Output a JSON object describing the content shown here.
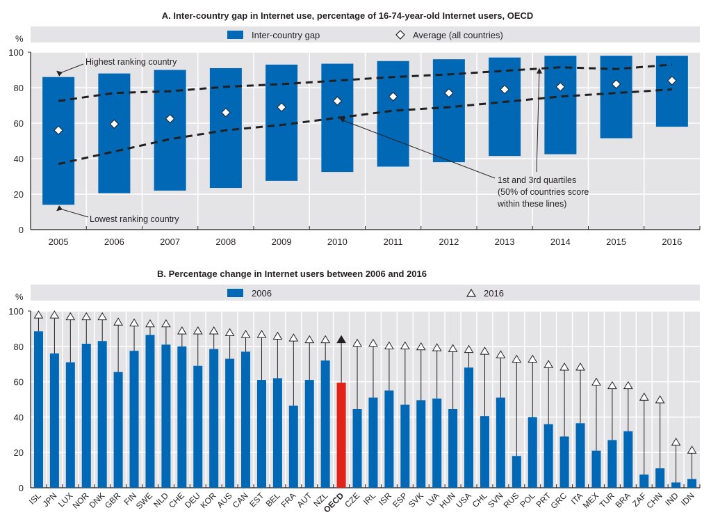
{
  "chart_data": [
    {
      "type": "bar",
      "subtype": "floating-range with markers",
      "title": "A. Inter-country gap in Internet use, percentage of 16-74-year-old Internet users, OECD",
      "ylabel": "%",
      "xlabel": "",
      "ylim": [
        0,
        100
      ],
      "yticks": [
        0,
        20,
        40,
        60,
        80,
        100
      ],
      "grid": true,
      "legend": {
        "placement": "top",
        "items": [
          {
            "label": "Inter-country gap",
            "symbol": "bar",
            "color": "#0068b5"
          },
          {
            "label": "Average (all countries)",
            "symbol": "diamond-open"
          }
        ]
      },
      "categories": [
        "2005",
        "2006",
        "2007",
        "2008",
        "2009",
        "2010",
        "2011",
        "2012",
        "2013",
        "2014",
        "2015",
        "2016"
      ],
      "series": [
        {
          "name": "Lowest ranking country",
          "values": [
            14,
            20.5,
            22,
            23.5,
            27.5,
            32.5,
            35.5,
            38,
            41.5,
            42.5,
            51.5,
            58
          ]
        },
        {
          "name": "Highest ranking country",
          "values": [
            86,
            88,
            90,
            91,
            93,
            93.5,
            95,
            96,
            97,
            98,
            98,
            98
          ]
        },
        {
          "name": "Average (all countries)",
          "values": [
            56,
            59.5,
            62.5,
            66,
            69,
            72.5,
            75,
            77,
            79,
            80.5,
            82,
            84
          ]
        },
        {
          "name": "1st quartile",
          "values": [
            37,
            44,
            51,
            56,
            59,
            63,
            67,
            69,
            72,
            75,
            77,
            79
          ]
        },
        {
          "name": "3rd quartile",
          "values": [
            72.5,
            77,
            78,
            80.5,
            82,
            84,
            86,
            87.5,
            89.5,
            91.5,
            90.5,
            93
          ]
        }
      ],
      "annotations": [
        {
          "text": "Highest ranking country"
        },
        {
          "text": "Lowest ranking country"
        },
        {
          "text_lines": [
            "1st and 3rd quartiles",
            "(50% of countries score",
            "within these lines)"
          ]
        }
      ],
      "colors": {
        "bar": "#0068b5",
        "plot_bg": "#e4e4e6",
        "legend_bg": "#e4e4e6"
      }
    },
    {
      "type": "bar",
      "subtype": "bar with marker",
      "title": "B. Percentage change in Internet users between 2006 and 2016",
      "ylabel": "%",
      "xlabel": "",
      "ylim": [
        0,
        100
      ],
      "yticks": [
        0,
        20,
        40,
        60,
        80,
        100
      ],
      "grid": true,
      "legend": {
        "placement": "top",
        "items": [
          {
            "label": "2006",
            "symbol": "bar",
            "color": "#0068b5"
          },
          {
            "label": "2016",
            "symbol": "triangle-open"
          }
        ]
      },
      "highlight": {
        "category": "OECD",
        "bar_color": "#e2231a",
        "marker": "triangle-filled"
      },
      "categories": [
        "ISL",
        "JPN",
        "LUX",
        "NOR",
        "DNK",
        "GBR",
        "FIN",
        "SWE",
        "NLD",
        "CHE",
        "DEU",
        "KOR",
        "AUS",
        "CAN",
        "EST",
        "BEL",
        "FRA",
        "AUT",
        "NZL",
        "OECD",
        "CZE",
        "IRL",
        "ISR",
        "ESP",
        "SVK",
        "LVA",
        "HUN",
        "USA",
        "CHL",
        "SVN",
        "RUS",
        "POL",
        "PRT",
        "GRC",
        "ITA",
        "MEX",
        "TUR",
        "BRA",
        "ZAF",
        "CHN",
        "IND",
        "IDN"
      ],
      "series": [
        {
          "name": "2006",
          "values": [
            88.5,
            76,
            71,
            81.5,
            83,
            65.5,
            77.5,
            86.5,
            81,
            80,
            69,
            78.5,
            73,
            77,
            61,
            62,
            46.5,
            61,
            72,
            59.5,
            44.5,
            51,
            55,
            47,
            49.5,
            50.5,
            44.5,
            68,
            40.5,
            51,
            18,
            40,
            36,
            29,
            36.5,
            21,
            27,
            32,
            7.5,
            11,
            3,
            5
          ]
        },
        {
          "name": "2016",
          "values": [
            98,
            98,
            97,
            97,
            97,
            94,
            93.5,
            93,
            93,
            89,
            89,
            89,
            88,
            87,
            87,
            86,
            85,
            84,
            84,
            84,
            82,
            82,
            80.5,
            80.5,
            80,
            79.5,
            79,
            78.5,
            77.5,
            75.5,
            73,
            73,
            70,
            68.5,
            68.5,
            60,
            58,
            58,
            51.5,
            50,
            26,
            21.5
          ]
        }
      ],
      "colors": {
        "bar": "#0068b5",
        "highlight_bar": "#e2231a",
        "plot_bg": "#e4e4e6",
        "legend_bg": "#e4e4e6"
      }
    }
  ]
}
